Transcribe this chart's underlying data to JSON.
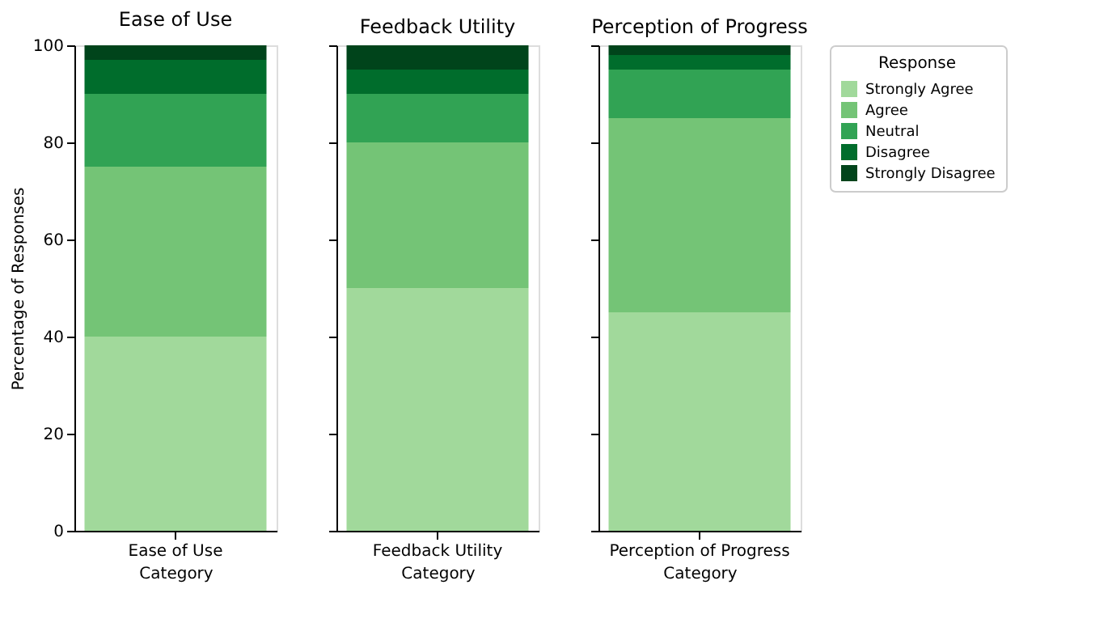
{
  "chart_data": [
    {
      "type": "bar",
      "stacked": true,
      "title": "Ease of Use",
      "categories": [
        "Ease of Use"
      ],
      "xlabel": "Category",
      "ylabel": "Percentage of Responses",
      "ylim": [
        0,
        100
      ],
      "yticks": [
        0,
        20,
        40,
        60,
        80,
        100
      ],
      "grid": false,
      "series": [
        {
          "color": "#a1d99b",
          "values": [
            40
          ]
        },
        {
          "color": "#74c476",
          "values": [
            35
          ]
        },
        {
          "color": "#31a354",
          "values": [
            15
          ]
        },
        {
          "color": "#006d2c",
          "values": [
            7
          ]
        },
        {
          "color": "#00441b",
          "values": [
            3
          ]
        }
      ]
    },
    {
      "type": "bar",
      "stacked": true,
      "title": "Feedback Utility",
      "categories": [
        "Feedback Utility"
      ],
      "xlabel": "Category",
      "ylim": [
        0,
        100
      ],
      "yticks": [
        0,
        20,
        40,
        60,
        80,
        100
      ],
      "tick_labels": "x",
      "grid": false,
      "series": [
        {
          "color": "#a1d99b",
          "values": [
            50
          ]
        },
        {
          "color": "#74c476",
          "values": [
            30
          ]
        },
        {
          "color": "#31a354",
          "values": [
            10
          ]
        },
        {
          "color": "#006d2c",
          "values": [
            5
          ]
        },
        {
          "color": "#00441b",
          "values": [
            5
          ]
        }
      ]
    },
    {
      "type": "bar",
      "stacked": true,
      "title": "Perception of Progress",
      "categories": [
        "Perception of Progress"
      ],
      "xlabel": "Category",
      "ylim": [
        0,
        100
      ],
      "yticks": [
        0,
        20,
        40,
        60,
        80,
        100
      ],
      "tick_labels": "x",
      "grid": false,
      "legend": "right",
      "legend_title": "Response",
      "series": [
        {
          "name": "Strongly Agree",
          "color": "#a1d99b",
          "values": [
            45
          ]
        },
        {
          "name": "Agree",
          "color": "#74c476",
          "values": [
            40
          ]
        },
        {
          "name": "Neutral",
          "color": "#31a354",
          "values": [
            10
          ]
        },
        {
          "name": "Disagree",
          "color": "#006d2c",
          "values": [
            3
          ]
        },
        {
          "name": "Strongly Disagree",
          "color": "#00441b",
          "values": [
            2
          ]
        }
      ]
    }
  ]
}
